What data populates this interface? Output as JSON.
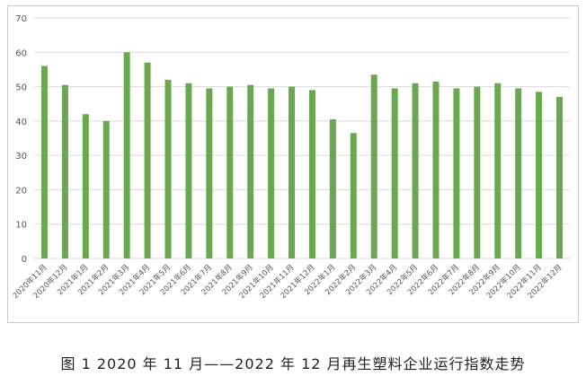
{
  "chart_data": {
    "type": "bar",
    "categories": [
      "2020年11月",
      "2020年12月",
      "2021年1月",
      "2021年2月",
      "2021年3月",
      "2021年4月",
      "2021年5月",
      "2021年6月",
      "2021年7月",
      "2021年8月",
      "2021年9月",
      "2021年10月",
      "2021年11月",
      "2021年12月",
      "2022年1月",
      "2022年2月",
      "2022年3月",
      "2022年4月",
      "2022年5月",
      "2022年6月",
      "2022年7月",
      "2022年8月",
      "2022年9月",
      "2022年10月",
      "2022年11月",
      "2022年12月"
    ],
    "values": [
      56,
      50.5,
      42,
      40,
      60,
      57,
      52,
      51,
      49.5,
      50,
      50.5,
      49.5,
      50,
      49,
      40.5,
      36.5,
      53.5,
      49.5,
      51,
      51.5,
      49.5,
      50,
      51,
      49.5,
      48.5,
      47
    ],
    "yticks": [
      0,
      10,
      20,
      30,
      40,
      50,
      60,
      70
    ],
    "ylim": [
      0,
      70
    ],
    "grid": true,
    "bar_color": "#6aa84f"
  },
  "caption": "图 1  2020 年 11 月——2022 年 12 月再生塑料企业运行指数走势"
}
